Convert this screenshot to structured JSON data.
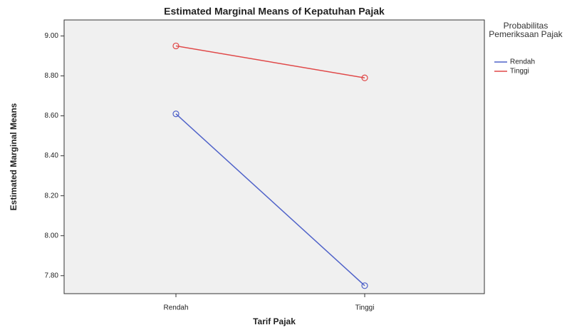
{
  "chart_data": {
    "type": "line",
    "title": "Estimated Marginal Means of Kepatuhan Pajak",
    "x_label": "Tarif Pajak",
    "y_label": "Estimated Marginal Means",
    "legend_title": "Probabilitas Pemeriksaan Pajak",
    "categories": [
      "Rendah",
      "Tinggi"
    ],
    "series": [
      {
        "name": "Rendah",
        "color": "#4f62c9",
        "values": [
          8.61,
          7.75
        ]
      },
      {
        "name": "Tinggi",
        "color": "#e04848",
        "values": [
          8.95,
          8.79
        ]
      }
    ],
    "ylim": [
      7.71,
      9.08
    ],
    "yticks": [
      {
        "value": 7.8,
        "label": "7.80"
      },
      {
        "value": 8.0,
        "label": "8.00"
      },
      {
        "value": 8.2,
        "label": "8.20"
      },
      {
        "value": 8.4,
        "label": "8.40"
      },
      {
        "value": 8.6,
        "label": "8.60"
      },
      {
        "value": 8.8,
        "label": "8.80"
      },
      {
        "value": 9.0,
        "label": "9.00"
      }
    ],
    "grid": false,
    "legend_position": "right"
  }
}
